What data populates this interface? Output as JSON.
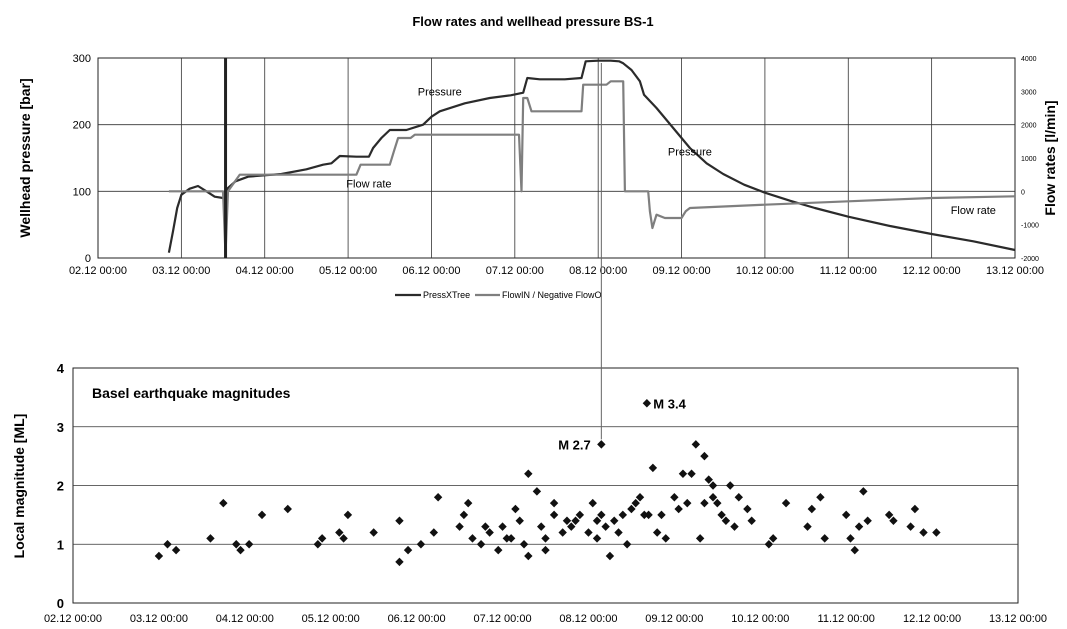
{
  "figure_title": "Flow rates and wellhead pressure BS-1",
  "x_ticks": [
    "02.12 00:00",
    "03.12 00:00",
    "04.12 00:00",
    "05.12 00:00",
    "06.12 00:00",
    "07.12 00:00",
    "08.12 00:00",
    "09.12 00:00",
    "10.12 00:00",
    "11.12 00:00",
    "12.12 00:00",
    "13.12 00:00"
  ],
  "chart_data": [
    {
      "type": "line",
      "title": "Flow rates and wellhead pressure BS-1",
      "xlabel": "",
      "ylabel": "Wellhead pressure [bar]",
      "ylabel_right": "Flow rates [l/min]",
      "x_unit": "days since 02.12 00:00",
      "xlim": [
        0,
        11
      ],
      "ylim": [
        0,
        300
      ],
      "ylim_right": [
        -2000,
        4000
      ],
      "yticks": [
        "0",
        "100",
        "200",
        "300"
      ],
      "yticks_right": [
        "-2000",
        "-1000",
        "0",
        "1000",
        "2000",
        "3000",
        "4000"
      ],
      "grid": true,
      "legend": {
        "position": "bottom",
        "entries": [
          "PressXTree",
          "FlowIN / Negative FlowO"
        ]
      },
      "annotations": [
        {
          "text": "Pressure",
          "x": 4.1,
          "y": 250
        },
        {
          "text": "Flow rate",
          "x": 3.25,
          "y": 112
        },
        {
          "text": "Pressure",
          "x": 7.1,
          "y": 160
        },
        {
          "text": "Flow rate",
          "x": 10.5,
          "y": 72
        }
      ],
      "series": [
        {
          "name": "PressXTree",
          "axis": "left",
          "color": "#2b2b2b",
          "points": [
            [
              0.85,
              8
            ],
            [
              0.9,
              40
            ],
            [
              0.95,
              75
            ],
            [
              1.0,
              95
            ],
            [
              1.1,
              104
            ],
            [
              1.2,
              108
            ],
            [
              1.3,
              100
            ],
            [
              1.4,
              92
            ],
            [
              1.5,
              90
            ],
            [
              1.53,
              85
            ],
            [
              1.56,
              105
            ],
            [
              1.65,
              115
            ],
            [
              1.8,
              122
            ],
            [
              2.0,
              124
            ],
            [
              2.2,
              126
            ],
            [
              2.5,
              133
            ],
            [
              2.7,
              140
            ],
            [
              2.8,
              142
            ],
            [
              2.9,
              153
            ],
            [
              3.1,
              152
            ],
            [
              3.25,
              152
            ],
            [
              3.3,
              165
            ],
            [
              3.4,
              180
            ],
            [
              3.5,
              192
            ],
            [
              3.7,
              192
            ],
            [
              3.9,
              200
            ],
            [
              4.0,
              212
            ],
            [
              4.1,
              220
            ],
            [
              4.4,
              232
            ],
            [
              4.7,
              240
            ],
            [
              4.95,
              244
            ],
            [
              5.1,
              248
            ],
            [
              5.15,
              270
            ],
            [
              5.3,
              268
            ],
            [
              5.6,
              268
            ],
            [
              5.8,
              270
            ],
            [
              5.85,
              295
            ],
            [
              6.0,
              296
            ],
            [
              6.15,
              296
            ],
            [
              6.25,
              295
            ],
            [
              6.3,
              292
            ],
            [
              6.4,
              282
            ],
            [
              6.5,
              265
            ],
            [
              6.55,
              245
            ],
            [
              6.7,
              225
            ],
            [
              6.9,
              195
            ],
            [
              7.1,
              165
            ],
            [
              7.3,
              142
            ],
            [
              7.5,
              126
            ],
            [
              7.75,
              110
            ],
            [
              8.0,
              98
            ],
            [
              8.3,
              86
            ],
            [
              8.6,
              75
            ],
            [
              9.0,
              62
            ],
            [
              9.5,
              48
            ],
            [
              10.0,
              36
            ],
            [
              10.5,
              25
            ],
            [
              11.0,
              12
            ]
          ]
        },
        {
          "name": "FlowIN / Negative FlowO",
          "axis": "right",
          "color": "#7f7f7f",
          "points": [
            [
              0.85,
              0
            ],
            [
              1.5,
              0
            ],
            [
              1.53,
              -1900
            ],
            [
              1.56,
              0
            ],
            [
              1.7,
              500
            ],
            [
              2.0,
              500
            ],
            [
              2.6,
              500
            ],
            [
              2.62,
              500
            ],
            [
              3.1,
              500
            ],
            [
              3.15,
              800
            ],
            [
              3.5,
              800
            ],
            [
              3.55,
              1200
            ],
            [
              3.6,
              1600
            ],
            [
              3.75,
              1600
            ],
            [
              3.8,
              1700
            ],
            [
              5.05,
              1700
            ],
            [
              5.08,
              0
            ],
            [
              5.1,
              2800
            ],
            [
              5.15,
              2800
            ],
            [
              5.2,
              2400
            ],
            [
              5.8,
              2400
            ],
            [
              5.82,
              3200
            ],
            [
              6.1,
              3200
            ],
            [
              6.15,
              3300
            ],
            [
              6.3,
              3300
            ],
            [
              6.32,
              0
            ],
            [
              6.6,
              0
            ],
            [
              6.62,
              -600
            ],
            [
              6.65,
              -1100
            ],
            [
              6.7,
              -700
            ],
            [
              6.8,
              -800
            ],
            [
              7.0,
              -800
            ],
            [
              7.05,
              -600
            ],
            [
              7.1,
              -500
            ],
            [
              8.0,
              -400
            ],
            [
              9.0,
              -300
            ],
            [
              10.0,
              -200
            ],
            [
              11.0,
              -150
            ]
          ]
        }
      ]
    },
    {
      "type": "scatter",
      "title": "Basel earthquake magnitudes",
      "xlabel": "",
      "ylabel": "Local magnitude [ML]",
      "x_unit": "days since 02.12 00:00",
      "xlim": [
        0,
        11
      ],
      "ylim": [
        0,
        4
      ],
      "yticks": [
        "0",
        "1",
        "2",
        "3",
        "4"
      ],
      "grid": true,
      "annotations": [
        {
          "text": "M 3.4",
          "x": 6.65,
          "y": 3.4
        },
        {
          "text": "M 2.7",
          "x": 6.12,
          "y": 2.7
        }
      ],
      "points": [
        [
          1.0,
          0.8
        ],
        [
          1.1,
          1.0
        ],
        [
          1.2,
          0.9
        ],
        [
          1.6,
          1.1
        ],
        [
          1.75,
          1.7
        ],
        [
          1.9,
          1.0
        ],
        [
          1.95,
          0.9
        ],
        [
          2.05,
          1.0
        ],
        [
          2.2,
          1.5
        ],
        [
          2.5,
          1.6
        ],
        [
          2.85,
          1.0
        ],
        [
          2.9,
          1.1
        ],
        [
          3.1,
          1.2
        ],
        [
          3.15,
          1.1
        ],
        [
          3.2,
          1.5
        ],
        [
          3.5,
          1.2
        ],
        [
          3.8,
          1.4
        ],
        [
          3.8,
          0.7
        ],
        [
          3.9,
          0.9
        ],
        [
          4.05,
          1.0
        ],
        [
          4.2,
          1.2
        ],
        [
          4.25,
          1.8
        ],
        [
          4.5,
          1.3
        ],
        [
          4.55,
          1.5
        ],
        [
          4.6,
          1.7
        ],
        [
          4.65,
          1.1
        ],
        [
          4.75,
          1.0
        ],
        [
          4.8,
          1.3
        ],
        [
          4.85,
          1.2
        ],
        [
          4.95,
          0.9
        ],
        [
          5.0,
          1.3
        ],
        [
          5.05,
          1.1
        ],
        [
          5.1,
          1.1
        ],
        [
          5.15,
          1.6
        ],
        [
          5.2,
          1.4
        ],
        [
          5.25,
          1.0
        ],
        [
          5.3,
          0.8
        ],
        [
          5.3,
          2.2
        ],
        [
          5.4,
          1.9
        ],
        [
          5.45,
          1.3
        ],
        [
          5.5,
          0.9
        ],
        [
          5.5,
          1.1
        ],
        [
          5.6,
          1.5
        ],
        [
          5.6,
          1.7
        ],
        [
          5.7,
          1.2
        ],
        [
          5.75,
          1.4
        ],
        [
          5.8,
          1.3
        ],
        [
          5.85,
          1.4
        ],
        [
          5.9,
          1.5
        ],
        [
          6.0,
          1.2
        ],
        [
          6.05,
          1.7
        ],
        [
          6.1,
          1.4
        ],
        [
          6.1,
          1.1
        ],
        [
          6.15,
          1.5
        ],
        [
          6.2,
          1.3
        ],
        [
          6.25,
          0.8
        ],
        [
          6.3,
          1.4
        ],
        [
          6.35,
          1.2
        ],
        [
          6.4,
          1.5
        ],
        [
          6.45,
          1.0
        ],
        [
          6.5,
          1.6
        ],
        [
          6.55,
          1.7
        ],
        [
          6.6,
          1.8
        ],
        [
          6.65,
          1.5
        ],
        [
          6.7,
          1.5
        ],
        [
          6.75,
          2.3
        ],
        [
          6.8,
          1.2
        ],
        [
          6.85,
          1.5
        ],
        [
          6.9,
          1.1
        ],
        [
          7.0,
          1.8
        ],
        [
          7.05,
          1.6
        ],
        [
          7.1,
          2.2
        ],
        [
          7.15,
          1.7
        ],
        [
          7.2,
          2.2
        ],
        [
          7.3,
          1.1
        ],
        [
          7.35,
          1.7
        ],
        [
          7.4,
          2.1
        ],
        [
          7.45,
          2.0
        ],
        [
          7.45,
          1.8
        ],
        [
          7.5,
          1.7
        ],
        [
          7.55,
          1.5
        ],
        [
          7.6,
          1.4
        ],
        [
          7.65,
          2.0
        ],
        [
          7.7,
          1.3
        ],
        [
          7.75,
          1.8
        ],
        [
          7.85,
          1.6
        ],
        [
          7.9,
          1.4
        ],
        [
          8.1,
          1.0
        ],
        [
          8.15,
          1.1
        ],
        [
          8.3,
          1.7
        ],
        [
          8.55,
          1.3
        ],
        [
          8.6,
          1.6
        ],
        [
          8.7,
          1.8
        ],
        [
          8.75,
          1.1
        ],
        [
          9.0,
          1.5
        ],
        [
          9.05,
          1.1
        ],
        [
          9.1,
          0.9
        ],
        [
          9.15,
          1.3
        ],
        [
          9.2,
          1.9
        ],
        [
          9.25,
          1.4
        ],
        [
          9.5,
          1.5
        ],
        [
          9.55,
          1.4
        ],
        [
          9.75,
          1.3
        ],
        [
          9.8,
          1.6
        ],
        [
          9.9,
          1.2
        ],
        [
          10.05,
          1.2
        ],
        [
          6.68,
          3.4
        ],
        [
          6.15,
          2.7
        ],
        [
          7.25,
          2.7
        ],
        [
          7.35,
          2.5
        ]
      ]
    }
  ]
}
